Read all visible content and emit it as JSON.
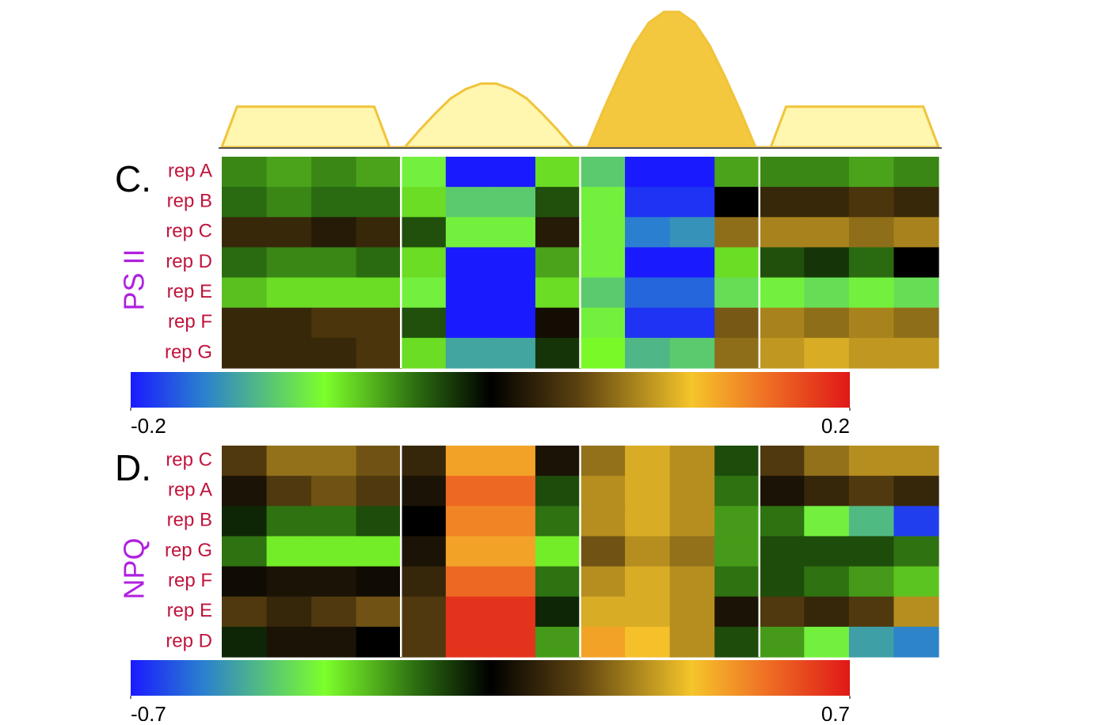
{
  "chart_data": [
    {
      "type": "area",
      "ylim": [
        0,
        100
      ],
      "series": [
        {
          "color": "#fff6b0",
          "edge": "#f0c43a",
          "values": [
            0,
            30,
            30,
            30,
            30,
            30,
            30,
            30,
            30,
            30,
            30,
            0,
            0,
            13,
            25,
            36,
            43,
            47,
            47,
            43,
            36,
            25,
            13,
            0,
            0,
            13,
            25,
            36,
            43,
            47,
            47,
            43,
            36,
            25,
            13,
            0,
            0,
            30,
            30,
            30,
            30,
            30,
            30,
            30,
            30,
            30,
            30,
            0
          ]
        },
        {
          "color": "#f3c73e",
          "edge": "#f0c43a",
          "values": [
            null,
            null,
            null,
            null,
            null,
            null,
            null,
            null,
            null,
            null,
            null,
            null,
            null,
            null,
            null,
            null,
            null,
            null,
            null,
            null,
            null,
            null,
            null,
            null,
            0,
            27,
            52,
            75,
            92,
            100,
            100,
            92,
            75,
            52,
            27,
            0,
            null,
            null,
            null,
            null,
            null,
            null,
            null,
            null,
            null,
            null,
            null,
            null
          ]
        }
      ]
    },
    {
      "type": "heatmap",
      "panel_label": "C.",
      "ylabel": "PS II",
      "rows": [
        "rep A",
        "rep B",
        "rep C",
        "rep D",
        "rep E",
        "rep F",
        "rep G"
      ],
      "zlim": [
        -0.2,
        0.2
      ],
      "colorbar_ticks": [
        -0.2,
        0.2
      ],
      "colorscale": [
        [
          0,
          "#1a1aff"
        ],
        [
          0.1,
          "#2a7fd0"
        ],
        [
          0.27,
          "#7dff2a"
        ],
        [
          0.4,
          "#2a6a10"
        ],
        [
          0.5,
          "#000000"
        ],
        [
          0.62,
          "#5a4010"
        ],
        [
          0.78,
          "#f5c52a"
        ],
        [
          0.87,
          "#f07a25"
        ],
        [
          1,
          "#e01818"
        ]
      ],
      "z": [
        [
          -0.05,
          -0.06,
          -0.05,
          -0.06,
          -0.1,
          -0.2,
          -0.2,
          -0.08,
          -0.12,
          -0.2,
          -0.2,
          -0.06,
          -0.05,
          -0.05,
          -0.06,
          -0.05
        ],
        [
          -0.04,
          -0.05,
          -0.04,
          -0.04,
          -0.08,
          -0.12,
          -0.12,
          -0.03,
          -0.1,
          -0.19,
          -0.19,
          0.0,
          0.03,
          0.03,
          0.04,
          0.03
        ],
        [
          0.03,
          0.03,
          0.02,
          0.03,
          -0.03,
          -0.1,
          -0.1,
          0.02,
          -0.1,
          -0.16,
          -0.15,
          0.07,
          0.08,
          0.08,
          0.07,
          0.08
        ],
        [
          -0.04,
          -0.05,
          -0.05,
          -0.04,
          -0.08,
          -0.2,
          -0.2,
          -0.06,
          -0.1,
          -0.2,
          -0.2,
          -0.08,
          -0.03,
          -0.02,
          -0.04,
          0.0
        ],
        [
          -0.07,
          -0.08,
          -0.08,
          -0.08,
          -0.1,
          -0.2,
          -0.2,
          -0.08,
          -0.12,
          -0.17,
          -0.17,
          -0.11,
          -0.1,
          -0.11,
          -0.1,
          -0.11
        ],
        [
          0.03,
          0.03,
          0.04,
          0.04,
          -0.03,
          -0.2,
          -0.2,
          0.01,
          -0.1,
          -0.19,
          -0.19,
          0.06,
          0.08,
          0.07,
          0.08,
          0.07
        ],
        [
          0.03,
          0.03,
          0.03,
          0.04,
          -0.08,
          -0.14,
          -0.14,
          -0.02,
          -0.09,
          -0.13,
          -0.12,
          0.07,
          0.09,
          0.1,
          0.09,
          0.09
        ]
      ]
    },
    {
      "type": "heatmap",
      "panel_label": "D.",
      "ylabel": "NPQ",
      "rows": [
        "rep C",
        "rep A",
        "rep B",
        "rep G",
        "rep F",
        "rep E",
        "rep D"
      ],
      "zlim": [
        -0.7,
        0.7
      ],
      "colorbar_ticks": [
        -0.7,
        0.7
      ],
      "colorscale": [
        [
          0,
          "#1a1aff"
        ],
        [
          0.1,
          "#2a7fd0"
        ],
        [
          0.27,
          "#7dff2a"
        ],
        [
          0.4,
          "#2a6a10"
        ],
        [
          0.5,
          "#000000"
        ],
        [
          0.62,
          "#5a4010"
        ],
        [
          0.78,
          "#f5c52a"
        ],
        [
          0.87,
          "#f07a25"
        ],
        [
          1,
          "#e01818"
        ]
      ],
      "z": [
        [
          0.15,
          0.25,
          0.25,
          0.2,
          0.1,
          0.45,
          0.45,
          0.05,
          0.25,
          0.35,
          0.3,
          -0.1,
          0.15,
          0.25,
          0.3,
          0.3
        ],
        [
          0.05,
          0.15,
          0.2,
          0.15,
          0.05,
          0.55,
          0.55,
          -0.1,
          0.3,
          0.35,
          0.3,
          -0.15,
          0.05,
          0.1,
          0.15,
          0.1
        ],
        [
          -0.05,
          -0.15,
          -0.15,
          -0.1,
          0.0,
          0.5,
          0.5,
          -0.15,
          0.3,
          0.35,
          0.3,
          -0.2,
          -0.15,
          -0.35,
          -0.45,
          -0.65
        ],
        [
          -0.15,
          -0.3,
          -0.3,
          -0.3,
          0.05,
          0.45,
          0.45,
          -0.3,
          0.2,
          0.3,
          0.25,
          -0.2,
          -0.1,
          -0.1,
          -0.1,
          -0.15
        ],
        [
          0.03,
          0.05,
          0.05,
          0.03,
          0.1,
          0.55,
          0.55,
          -0.15,
          0.3,
          0.35,
          0.3,
          -0.15,
          -0.1,
          -0.15,
          -0.2,
          -0.25
        ],
        [
          0.15,
          0.1,
          0.15,
          0.2,
          0.15,
          0.65,
          0.65,
          -0.05,
          0.35,
          0.35,
          0.3,
          0.05,
          0.15,
          0.1,
          0.15,
          0.3
        ],
        [
          -0.05,
          0.05,
          0.05,
          0.0,
          0.15,
          0.65,
          0.65,
          -0.2,
          0.45,
          0.4,
          0.3,
          -0.1,
          -0.2,
          -0.35,
          -0.5,
          -0.55
        ]
      ]
    }
  ]
}
